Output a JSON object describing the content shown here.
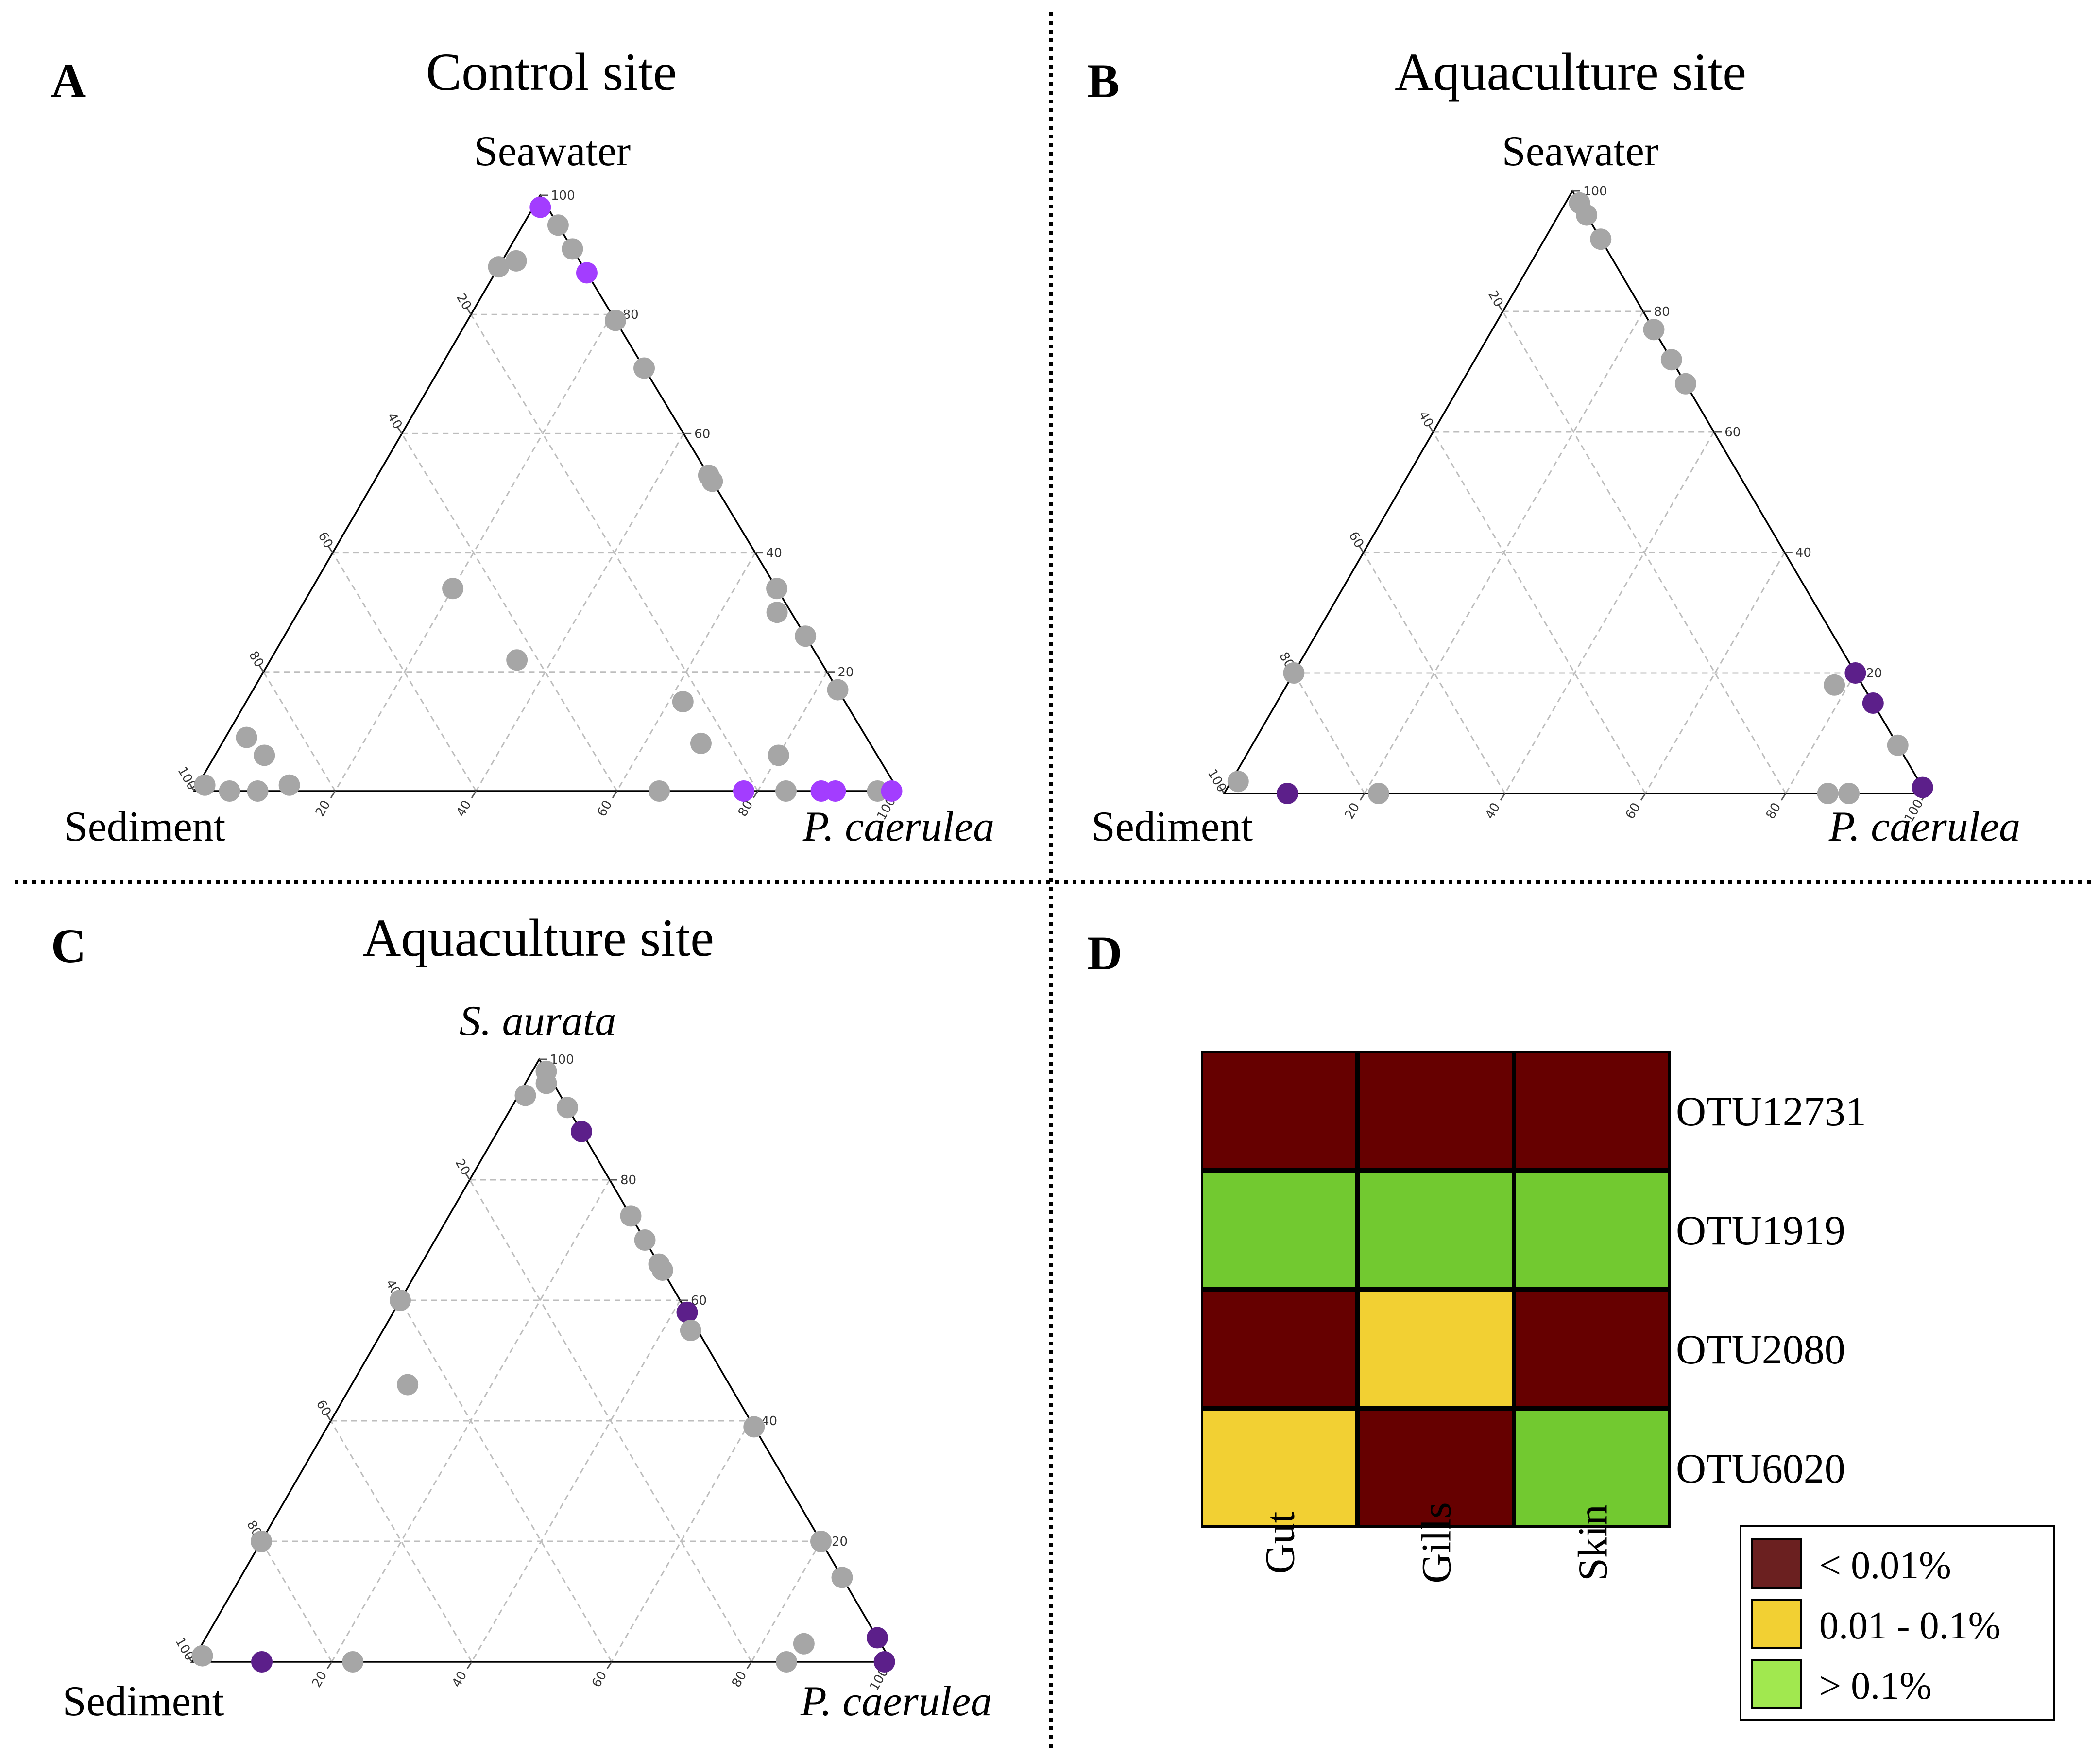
{
  "figure": {
    "separators": true
  },
  "chart_data": [
    {
      "type": "ternary",
      "panel": "A",
      "title": "Control site",
      "vertices": {
        "top": "Seawater",
        "left": "Sediment",
        "right": "P. caerulea"
      },
      "italic": {
        "top": false,
        "left": false,
        "right": true
      },
      "ticks": [
        20,
        40,
        60,
        80,
        100
      ],
      "grid": true,
      "colors": {
        "grey": "#a6a6a6",
        "highlight": "#a33dff"
      },
      "points": [
        {
          "a": 98,
          "b": 1,
          "c": 1,
          "color": "highlight"
        },
        {
          "a": 95,
          "b": 0,
          "c": 5,
          "color": "grey"
        },
        {
          "a": 91,
          "b": 0,
          "c": 9,
          "color": "grey"
        },
        {
          "a": 87,
          "b": 0,
          "c": 13,
          "color": "highlight"
        },
        {
          "a": 89,
          "b": 9,
          "c": 2,
          "color": "grey"
        },
        {
          "a": 88,
          "b": 12,
          "c": 0,
          "color": "grey"
        },
        {
          "a": 79,
          "b": 0,
          "c": 21,
          "color": "grey"
        },
        {
          "a": 71,
          "b": 0,
          "c": 29,
          "color": "grey"
        },
        {
          "a": 53,
          "b": 0,
          "c": 47,
          "color": "grey"
        },
        {
          "a": 52,
          "b": 0,
          "c": 48,
          "color": "grey"
        },
        {
          "a": 34,
          "b": 0,
          "c": 66,
          "color": "grey"
        },
        {
          "a": 30,
          "b": 2,
          "c": 68,
          "color": "grey"
        },
        {
          "a": 26,
          "b": 0,
          "c": 74,
          "color": "grey"
        },
        {
          "a": 17,
          "b": 0,
          "c": 83,
          "color": "grey"
        },
        {
          "a": 34,
          "b": 46,
          "c": 20,
          "color": "grey"
        },
        {
          "a": 22,
          "b": 43,
          "c": 35,
          "color": "grey"
        },
        {
          "a": 15,
          "b": 23,
          "c": 62,
          "color": "grey"
        },
        {
          "a": 8,
          "b": 24,
          "c": 68,
          "color": "grey"
        },
        {
          "a": 6,
          "b": 14,
          "c": 80,
          "color": "grey"
        },
        {
          "a": 9,
          "b": 88,
          "c": 3,
          "color": "grey"
        },
        {
          "a": 6,
          "b": 87,
          "c": 7,
          "color": "grey"
        },
        {
          "a": 1,
          "b": 98,
          "c": 1,
          "color": "grey"
        },
        {
          "a": 0,
          "b": 95,
          "c": 5,
          "color": "grey"
        },
        {
          "a": 0,
          "b": 91,
          "c": 9,
          "color": "grey"
        },
        {
          "a": 1,
          "b": 86,
          "c": 13,
          "color": "grey"
        },
        {
          "a": 0,
          "b": 34,
          "c": 66,
          "color": "grey"
        },
        {
          "a": 0,
          "b": 22,
          "c": 78,
          "color": "highlight"
        },
        {
          "a": 0,
          "b": 16,
          "c": 84,
          "color": "grey"
        },
        {
          "a": 0,
          "b": 11,
          "c": 89,
          "color": "highlight"
        },
        {
          "a": 0,
          "b": 9,
          "c": 91,
          "color": "highlight"
        },
        {
          "a": 0,
          "b": 3,
          "c": 97,
          "color": "grey"
        },
        {
          "a": 0,
          "b": 1,
          "c": 99,
          "color": "highlight"
        }
      ]
    },
    {
      "type": "ternary",
      "panel": "B",
      "title": "Aquaculture site",
      "vertices": {
        "top": "Seawater",
        "left": "Sediment",
        "right": "P. caerulea"
      },
      "italic": {
        "top": false,
        "left": false,
        "right": true
      },
      "ticks": [
        20,
        40,
        60,
        80,
        100
      ],
      "grid": true,
      "colors": {
        "grey": "#a6a6a6",
        "highlight": "#5c1f8a"
      },
      "points": [
        {
          "a": 98,
          "b": 0,
          "c": 2,
          "color": "grey"
        },
        {
          "a": 96,
          "b": 0,
          "c": 4,
          "color": "grey"
        },
        {
          "a": 92,
          "b": 0,
          "c": 8,
          "color": "grey"
        },
        {
          "a": 77,
          "b": 0,
          "c": 23,
          "color": "grey"
        },
        {
          "a": 72,
          "b": 0,
          "c": 28,
          "color": "grey"
        },
        {
          "a": 68,
          "b": 0,
          "c": 32,
          "color": "grey"
        },
        {
          "a": 20,
          "b": 0,
          "c": 80,
          "color": "highlight"
        },
        {
          "a": 18,
          "b": 4,
          "c": 78,
          "color": "grey"
        },
        {
          "a": 15,
          "b": 0,
          "c": 85,
          "color": "highlight"
        },
        {
          "a": 8,
          "b": 0,
          "c": 92,
          "color": "grey"
        },
        {
          "a": 1,
          "b": 0,
          "c": 99,
          "color": "highlight"
        },
        {
          "a": 20,
          "b": 80,
          "c": 0,
          "color": "grey"
        },
        {
          "a": 2,
          "b": 97,
          "c": 1,
          "color": "grey"
        },
        {
          "a": 0,
          "b": 91,
          "c": 9,
          "color": "highlight"
        },
        {
          "a": 0,
          "b": 78,
          "c": 22,
          "color": "grey"
        },
        {
          "a": 0,
          "b": 14,
          "c": 86,
          "color": "grey"
        },
        {
          "a": 0,
          "b": 11,
          "c": 89,
          "color": "grey"
        }
      ]
    },
    {
      "type": "ternary",
      "panel": "C",
      "title": "Aquaculture site",
      "vertices": {
        "top": "S. aurata",
        "left": "Sediment",
        "right": "P. caerulea"
      },
      "italic": {
        "top": true,
        "left": false,
        "right": true
      },
      "ticks": [
        20,
        40,
        60,
        80,
        100
      ],
      "grid": true,
      "colors": {
        "grey": "#a6a6a6",
        "highlight": "#5c1f8a"
      },
      "points": [
        {
          "a": 98,
          "b": 0,
          "c": 2,
          "color": "grey"
        },
        {
          "a": 96,
          "b": 1,
          "c": 3,
          "color": "grey"
        },
        {
          "a": 94,
          "b": 5,
          "c": 1,
          "color": "grey"
        },
        {
          "a": 92,
          "b": 0,
          "c": 8,
          "color": "grey"
        },
        {
          "a": 88,
          "b": 0,
          "c": 12,
          "color": "highlight"
        },
        {
          "a": 74,
          "b": 0,
          "c": 26,
          "color": "grey"
        },
        {
          "a": 70,
          "b": 0,
          "c": 30,
          "color": "grey"
        },
        {
          "a": 66,
          "b": 0,
          "c": 34,
          "color": "grey"
        },
        {
          "a": 65,
          "b": 0,
          "c": 35,
          "color": "grey"
        },
        {
          "a": 58,
          "b": 0,
          "c": 42,
          "color": "highlight"
        },
        {
          "a": 55,
          "b": 1,
          "c": 44,
          "color": "grey"
        },
        {
          "a": 39,
          "b": 0,
          "c": 61,
          "color": "grey"
        },
        {
          "a": 60,
          "b": 40,
          "c": 0,
          "color": "grey"
        },
        {
          "a": 46,
          "b": 46,
          "c": 8,
          "color": "grey"
        },
        {
          "a": 20,
          "b": 80,
          "c": 0,
          "color": "grey"
        },
        {
          "a": 20,
          "b": 0,
          "c": 80,
          "color": "grey"
        },
        {
          "a": 14,
          "b": 0,
          "c": 86,
          "color": "grey"
        },
        {
          "a": 3,
          "b": 11,
          "c": 86,
          "color": "grey"
        },
        {
          "a": 4,
          "b": 0,
          "c": 96,
          "color": "highlight"
        },
        {
          "a": 1,
          "b": 98,
          "c": 1,
          "color": "grey"
        },
        {
          "a": 0,
          "b": 90,
          "c": 10,
          "color": "highlight"
        },
        {
          "a": 0,
          "b": 77,
          "c": 23,
          "color": "grey"
        },
        {
          "a": 0,
          "b": 15,
          "c": 85,
          "color": "grey"
        },
        {
          "a": 0,
          "b": 1,
          "c": 99,
          "color": "highlight"
        }
      ]
    },
    {
      "type": "heatmap",
      "panel": "D",
      "columns": [
        "Gut",
        "Gills",
        "Skin"
      ],
      "rows": [
        "OTU12731",
        "OTU1919",
        "OTU2080",
        "OTU6020"
      ],
      "levels": [
        [
          0,
          0,
          0
        ],
        [
          2,
          2,
          2
        ],
        [
          0,
          1,
          0
        ],
        [
          1,
          0,
          2
        ]
      ],
      "cell_colors": [
        "#660000",
        "#f2d033",
        "#72c930"
      ],
      "legend": [
        {
          "label": "< 0.01%",
          "color": "#6b2020"
        },
        {
          "label": "0.01 - 0.1%",
          "color": "#f2d033"
        },
        {
          "label": "> 0.1%",
          "color": "#a1e84f"
        }
      ]
    }
  ]
}
